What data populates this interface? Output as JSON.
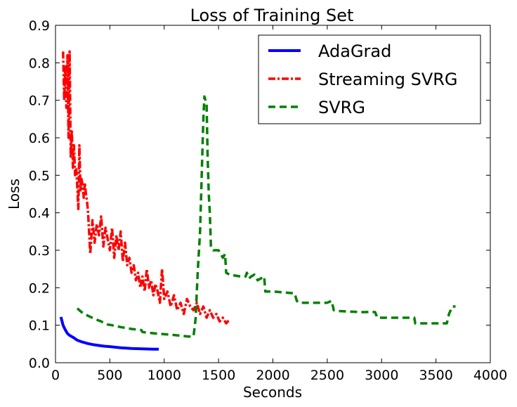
{
  "chart_data": {
    "type": "line",
    "title": "Loss of Training Set",
    "xlabel": "Seconds",
    "ylabel": "Loss",
    "xlim": [
      0,
      4000
    ],
    "ylim": [
      0.0,
      0.9
    ],
    "xticks": [
      0,
      500,
      1000,
      1500,
      2000,
      2500,
      3000,
      3500,
      4000
    ],
    "xtick_labels": [
      "0",
      "500",
      "1000",
      "1500",
      "2000",
      "2500",
      "3000",
      "3500",
      "4000"
    ],
    "yticks": [
      0.0,
      0.1,
      0.2,
      0.3,
      0.4,
      0.5,
      0.6,
      0.7,
      0.8,
      0.9
    ],
    "ytick_labels": [
      "0.0",
      "0.1",
      "0.2",
      "0.3",
      "0.4",
      "0.5",
      "0.6",
      "0.7",
      "0.8",
      "0.9"
    ],
    "grid": false,
    "legend_position": "top-right",
    "series": [
      {
        "name": "AdaGrad",
        "color": "#0000ff",
        "style": "solid",
        "x": [
          50,
          70,
          90,
          110,
          130,
          160,
          200,
          250,
          300,
          350,
          400,
          450,
          500,
          600,
          700,
          800,
          900,
          950
        ],
        "y": [
          0.122,
          0.1,
          0.088,
          0.078,
          0.073,
          0.068,
          0.06,
          0.055,
          0.051,
          0.048,
          0.046,
          0.044,
          0.043,
          0.04,
          0.038,
          0.037,
          0.036,
          0.036
        ]
      },
      {
        "name": "Streaming SVRG",
        "color": "#ff0000",
        "style": "dashdot",
        "x": [
          70,
          80,
          90,
          100,
          110,
          120,
          130,
          140,
          150,
          160,
          170,
          180,
          190,
          200,
          210,
          220,
          230,
          240,
          250,
          260,
          270,
          280,
          290,
          300,
          320,
          340,
          360,
          380,
          400,
          420,
          440,
          460,
          480,
          500,
          520,
          540,
          560,
          580,
          600,
          620,
          640,
          660,
          680,
          700,
          720,
          740,
          760,
          780,
          800,
          820,
          840,
          860,
          880,
          900,
          920,
          940,
          960,
          980,
          1000,
          1030,
          1060,
          1090,
          1120,
          1150,
          1180,
          1210,
          1240,
          1270,
          1300,
          1330,
          1360,
          1390,
          1420,
          1450,
          1480,
          1510,
          1540,
          1570,
          1600
        ],
        "y": [
          0.83,
          0.7,
          0.79,
          0.68,
          0.82,
          0.6,
          0.83,
          0.55,
          0.62,
          0.52,
          0.58,
          0.5,
          0.52,
          0.47,
          0.41,
          0.58,
          0.46,
          0.49,
          0.47,
          0.44,
          0.48,
          0.45,
          0.43,
          0.4,
          0.29,
          0.38,
          0.32,
          0.37,
          0.34,
          0.39,
          0.31,
          0.36,
          0.33,
          0.3,
          0.36,
          0.28,
          0.34,
          0.3,
          0.35,
          0.27,
          0.32,
          0.26,
          0.28,
          0.24,
          0.26,
          0.22,
          0.24,
          0.2,
          0.23,
          0.19,
          0.25,
          0.2,
          0.22,
          0.18,
          0.21,
          0.19,
          0.16,
          0.25,
          0.17,
          0.19,
          0.15,
          0.18,
          0.14,
          0.16,
          0.13,
          0.17,
          0.15,
          0.14,
          0.16,
          0.13,
          0.15,
          0.12,
          0.14,
          0.12,
          0.13,
          0.11,
          0.12,
          0.105,
          0.115
        ]
      },
      {
        "name": "SVRG",
        "color": "#008000",
        "style": "dashed",
        "x": [
          200,
          240,
          300,
          360,
          420,
          480,
          520,
          600,
          700,
          790,
          800,
          850,
          950,
          1050,
          1150,
          1220,
          1260,
          1270,
          1290,
          1300,
          1310,
          1320,
          1330,
          1340,
          1350,
          1360,
          1370,
          1380,
          1390,
          1400,
          1410,
          1420,
          1430,
          1450,
          1500,
          1540,
          1560,
          1570,
          1600,
          1700,
          1750,
          1760,
          1780,
          1800,
          1830,
          1860,
          1890,
          1920,
          1930,
          2000,
          2200,
          2220,
          2240,
          2300,
          2500,
          2540,
          2560,
          2600,
          2800,
          2850,
          2900,
          2940,
          2960,
          3000,
          3200,
          3300,
          3310,
          3400,
          3580,
          3600,
          3620,
          3650,
          3680
        ],
        "y": [
          0.145,
          0.135,
          0.125,
          0.117,
          0.11,
          0.102,
          0.1,
          0.095,
          0.09,
          0.087,
          0.082,
          0.08,
          0.077,
          0.075,
          0.072,
          0.07,
          0.07,
          0.07,
          0.12,
          0.19,
          0.25,
          0.3,
          0.35,
          0.45,
          0.55,
          0.65,
          0.71,
          0.7,
          0.69,
          0.55,
          0.45,
          0.4,
          0.31,
          0.3,
          0.3,
          0.28,
          0.29,
          0.24,
          0.235,
          0.23,
          0.23,
          0.24,
          0.225,
          0.23,
          0.235,
          0.22,
          0.225,
          0.23,
          0.19,
          0.19,
          0.185,
          0.165,
          0.16,
          0.16,
          0.16,
          0.165,
          0.14,
          0.138,
          0.135,
          0.135,
          0.136,
          0.135,
          0.12,
          0.12,
          0.12,
          0.12,
          0.105,
          0.105,
          0.105,
          0.105,
          0.13,
          0.15,
          0.15
        ]
      }
    ]
  }
}
